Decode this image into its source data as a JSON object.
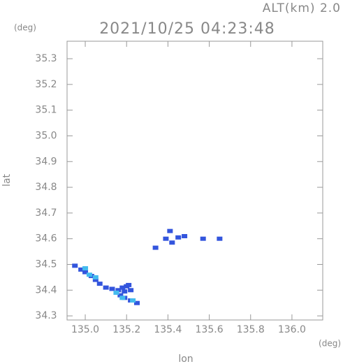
{
  "chart_data": {
    "type": "scatter",
    "title": "2021/10/25 04:23:48",
    "altitude_label": "ALT(km) 2.0",
    "y_unit": "(deg)",
    "x_unit": "(deg)",
    "xlabel": "lon",
    "ylabel": "lat",
    "xlim": [
      134.912,
      136.149
    ],
    "ylim": [
      34.284,
      35.368
    ],
    "xticks": [
      {
        "value": 135.0,
        "label": "135.0"
      },
      135.2,
      135.4,
      135.6,
      135.8,
      {
        "value": 136.0,
        "label": "136.0"
      }
    ],
    "yticks": [
      34.3,
      34.4,
      34.5,
      34.6,
      34.7,
      34.8,
      34.9,
      {
        "value": 35.0,
        "label": "35.0"
      },
      35.1,
      35.2,
      35.3
    ],
    "series": [
      {
        "color": "#3355dd",
        "x": [
          134.95,
          134.98,
          135.0,
          135.03,
          135.05,
          135.07,
          135.1,
          135.13,
          135.16,
          135.18,
          135.2,
          135.21,
          135.19,
          135.22,
          135.17,
          135.19,
          135.22,
          135.25,
          135.34,
          135.39,
          135.41,
          135.42,
          135.45,
          135.48,
          135.57,
          135.65
        ],
        "values": [
          34.495,
          34.48,
          34.47,
          34.455,
          34.44,
          34.425,
          34.41,
          34.405,
          34.4,
          34.41,
          34.415,
          34.42,
          34.395,
          34.4,
          34.38,
          34.37,
          34.36,
          34.35,
          34.565,
          34.6,
          34.63,
          34.585,
          34.605,
          34.61,
          34.6,
          34.6
        ]
      },
      {
        "color": "#44bbee",
        "x": [
          135.0,
          135.02,
          135.05,
          135.15,
          135.18,
          135.23
        ],
        "values": [
          34.485,
          34.46,
          34.45,
          34.39,
          34.37,
          34.36
        ]
      }
    ]
  }
}
